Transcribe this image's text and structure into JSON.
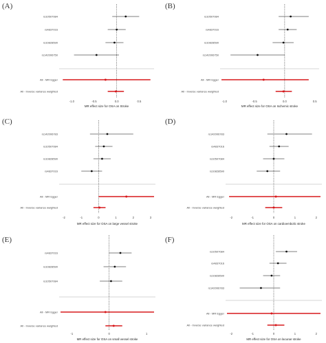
{
  "figure_colors": {
    "point": "#111111",
    "interval": "#555555",
    "summary": "#d7191c",
    "separator": "#c8c8c8",
    "zero_line": "#333333"
  },
  "chart_data": [
    {
      "type": "scatter",
      "panel": "(A)",
      "xlabel": "MR effect size for OSA on Stroke",
      "xlim": [
        -1.25,
        0.8
      ],
      "xticks": [
        "-1.0",
        "-0.5",
        "0.0",
        "0.5"
      ],
      "tick_values": [
        -1.0,
        -0.5,
        0.0,
        0.5
      ],
      "snp_rows": [
        {
          "label": "rs10507084",
          "est": 0.2,
          "lo": -0.1,
          "hi": 0.5
        },
        {
          "label": "rs4837016",
          "est": 0.0,
          "lo": -0.2,
          "hi": 0.2
        },
        {
          "label": "rs10828590",
          "est": -0.05,
          "lo": -0.25,
          "hi": 0.15
        },
        {
          "label": "rs142006750",
          "est": -0.45,
          "lo": -0.95,
          "hi": 0.05
        }
      ],
      "summary_rows": [
        {
          "label": "All - MR Egger",
          "est": -0.25,
          "lo": -1.2,
          "hi": 0.75
        },
        {
          "label": "All - Inverse variance weighted",
          "est": -0.02,
          "lo": -0.2,
          "hi": 0.16
        }
      ]
    },
    {
      "type": "scatter",
      "panel": "(B)",
      "xlabel": "MR effect size for OSA on Ischemic stroke",
      "xlim": [
        -1.05,
        0.55
      ],
      "xticks": [
        "-1.0",
        "-0.5",
        "0.0",
        "0.5"
      ],
      "tick_values": [
        -1.0,
        -0.5,
        0.0,
        0.5
      ],
      "snp_rows": [
        {
          "label": "rs10507084",
          "est": 0.1,
          "lo": -0.1,
          "hi": 0.4
        },
        {
          "label": "rs4837016",
          "est": 0.05,
          "lo": -0.1,
          "hi": 0.2
        },
        {
          "label": "rs10828590",
          "est": -0.02,
          "lo": -0.2,
          "hi": 0.15
        },
        {
          "label": "rs142006750",
          "est": -0.45,
          "lo": -0.9,
          "hi": 0.0
        }
      ],
      "summary_rows": [
        {
          "label": "All - MR Egger",
          "est": -0.35,
          "lo": -1.05,
          "hi": 0.4
        },
        {
          "label": "All - Inverse variance weighted",
          "est": -0.02,
          "lo": -0.15,
          "hi": 0.12
        }
      ]
    },
    {
      "type": "scatter",
      "panel": "(C)",
      "xlabel": "MR effect size for OSA on large vessel stroke",
      "xlim": [
        -2.2,
        3.2
      ],
      "xticks": [
        "-2",
        "-1",
        "0",
        "1",
        "2",
        "3"
      ],
      "tick_values": [
        -2,
        -1,
        0,
        1,
        2,
        3
      ],
      "snp_rows": [
        {
          "label": "rs142006783",
          "est": 0.5,
          "lo": -0.5,
          "hi": 2.0
        },
        {
          "label": "rs10507084",
          "est": 0.3,
          "lo": -0.2,
          "hi": 0.8
        },
        {
          "label": "rs10828590",
          "est": 0.2,
          "lo": -0.3,
          "hi": 0.7
        },
        {
          "label": "rs4837016",
          "est": -0.4,
          "lo": -1.0,
          "hi": 0.2
        }
      ],
      "summary_rows": [
        {
          "label": "All - MR Egger",
          "est": 1.6,
          "lo": 0.0,
          "hi": 3.2
        },
        {
          "label": "All - Inverse variance weighted",
          "est": 0.05,
          "lo": -0.3,
          "hi": 0.4
        }
      ]
    },
    {
      "type": "scatter",
      "panel": "(D)",
      "xlabel": "MR effect size for OSA on cardioembolic stroke",
      "xlim": [
        -2.2,
        2.2
      ],
      "xticks": [
        "-2",
        "-1",
        "0",
        "1",
        "2"
      ],
      "tick_values": [
        -2,
        -1,
        0,
        1,
        2
      ],
      "snp_rows": [
        {
          "label": "rs142006783",
          "est": 0.6,
          "lo": -0.3,
          "hi": 1.8
        },
        {
          "label": "rs4837016",
          "est": 0.25,
          "lo": -0.2,
          "hi": 0.7
        },
        {
          "label": "rs10507084",
          "est": 0.0,
          "lo": -0.5,
          "hi": 0.5
        },
        {
          "label": "rs10828590",
          "est": -0.3,
          "lo": -0.8,
          "hi": 0.3
        }
      ],
      "summary_rows": [
        {
          "label": "All - MR Egger",
          "est": 0.1,
          "lo": -2.1,
          "hi": 2.2
        },
        {
          "label": "All - Inverse variance weighted",
          "est": 0.0,
          "lo": -0.4,
          "hi": 0.4
        }
      ]
    },
    {
      "type": "scatter",
      "panel": "(E)",
      "xlabel": "MR effect size for OSA on small vessel stroke",
      "xlim": [
        -1.3,
        1.2
      ],
      "xticks": [
        "-1",
        "0",
        "1"
      ],
      "tick_values": [
        -1,
        0,
        1
      ],
      "snp_rows": [
        {
          "label": "rs4837016",
          "est": 0.3,
          "lo": 0.0,
          "hi": 0.6
        },
        {
          "label": "rs10828590",
          "est": 0.15,
          "lo": -0.15,
          "hi": 0.45
        },
        {
          "label": "rs10507084",
          "est": 0.05,
          "lo": -0.25,
          "hi": 0.35
        }
      ],
      "summary_rows": [
        {
          "label": "All - MR Egger",
          "est": -0.1,
          "lo": -1.3,
          "hi": 1.2
        },
        {
          "label": "All - Inverse variance weighted",
          "est": 0.12,
          "lo": -0.1,
          "hi": 0.35
        }
      ]
    },
    {
      "type": "scatter",
      "panel": "(F)",
      "xlabel": "MR effect size for OSA on lacunar stroke",
      "xlim": [
        -2.2,
        2.2
      ],
      "xticks": [
        "-2",
        "-1",
        "0",
        "1",
        "2"
      ],
      "tick_values": [
        -2,
        -1,
        0,
        1,
        2
      ],
      "snp_rows": [
        {
          "label": "rs10507084",
          "est": 0.6,
          "lo": 0.1,
          "hi": 1.1
        },
        {
          "label": "rs4837016",
          "est": 0.2,
          "lo": -0.2,
          "hi": 0.6
        },
        {
          "label": "rs10828590",
          "est": -0.1,
          "lo": -0.5,
          "hi": 0.3
        },
        {
          "label": "rs142006783",
          "est": -0.6,
          "lo": -1.6,
          "hi": 0.3
        }
      ],
      "summary_rows": [
        {
          "label": "All - MR Egger",
          "est": -0.1,
          "lo": -2.2,
          "hi": 2.2
        },
        {
          "label": "All - Inverse variance weighted",
          "est": 0.1,
          "lo": -0.3,
          "hi": 0.5
        }
      ]
    }
  ]
}
